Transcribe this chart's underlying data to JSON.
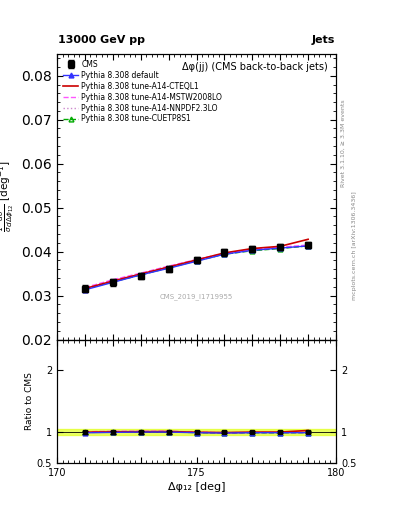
{
  "title_top": "13000 GeV pp",
  "title_right": "Jets",
  "plot_title": "Δφ(jj) (CMS back-to-back jets)",
  "xlabel": "Δφ₁₂ [deg]",
  "ylabel_ratio": "Ratio to CMS",
  "watermark": "CMS_2019_I1719955",
  "right_label_top": "Rivet 3.1.10, ≥ 3.3M events",
  "right_label_bottom": "mcplots.cern.ch [arXiv:1306.3436]",
  "xlim": [
    170,
    180
  ],
  "ylim_main": [
    0.02,
    0.085
  ],
  "ylim_ratio": [
    0.5,
    2.5
  ],
  "yticks_main": [
    0.02,
    0.03,
    0.04,
    0.05,
    0.06,
    0.07,
    0.08
  ],
  "yticks_ratio": [
    0.5,
    1.0,
    2.0
  ],
  "x_data": [
    171.0,
    172.0,
    173.0,
    174.0,
    175.0,
    176.0,
    177.0,
    178.0,
    179.0
  ],
  "cms_y": [
    0.0315,
    0.033,
    0.0345,
    0.036,
    0.038,
    0.0398,
    0.0405,
    0.041,
    0.0415
  ],
  "cms_yerr": [
    0.0008,
    0.0008,
    0.0007,
    0.0007,
    0.0007,
    0.0007,
    0.0007,
    0.0007,
    0.0007
  ],
  "pythia_default_y": [
    0.0313,
    0.033,
    0.0347,
    0.0362,
    0.0378,
    0.0394,
    0.0403,
    0.0408,
    0.0413
  ],
  "pythia_cteq_y": [
    0.0316,
    0.0333,
    0.0349,
    0.0365,
    0.0381,
    0.0397,
    0.0407,
    0.0412,
    0.0428
  ],
  "pythia_mstw_y": [
    0.0318,
    0.0336,
    0.0351,
    0.0367,
    0.0382,
    0.0396,
    0.0405,
    0.041,
    0.0415
  ],
  "pythia_nnpdf_y": [
    0.0318,
    0.0335,
    0.035,
    0.0366,
    0.0381,
    0.0396,
    0.0404,
    0.0409,
    0.0414
  ],
  "pythia_cuetp_y": [
    0.0315,
    0.0331,
    0.0347,
    0.0363,
    0.0379,
    0.0394,
    0.0402,
    0.0407,
    0.0413
  ],
  "color_cms": "#000000",
  "color_default": "#3333ff",
  "color_cteq": "#cc0000",
  "color_mstw": "#ff55ff",
  "color_nnpdf": "#cc88cc",
  "color_cuetp": "#00aa00",
  "ratio_band_color": "#ddff00",
  "ratio_band_alpha": 0.6,
  "legend_labels": [
    "CMS",
    "Pythia 8.308 default",
    "Pythia 8.308 tune-A14-CTEQL1",
    "Pythia 8.308 tune-A14-MSTW2008LO",
    "Pythia 8.308 tune-A14-NNPDF2.3LO",
    "Pythia 8.308 tune-CUETP8S1"
  ]
}
